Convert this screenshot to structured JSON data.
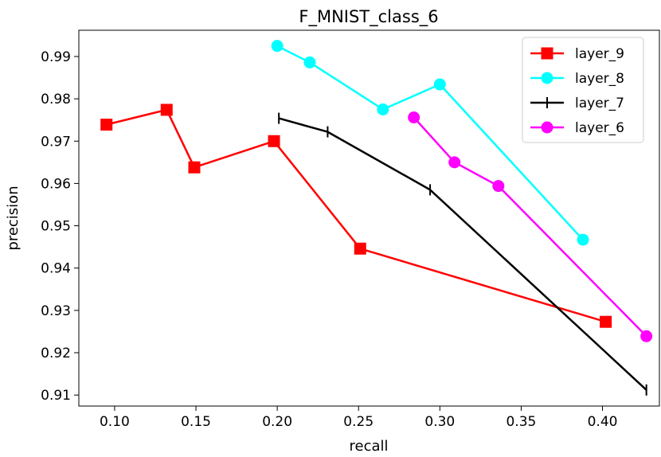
{
  "chart_data": {
    "type": "line",
    "title": "F_MNIST_class_6",
    "xlabel": "recall",
    "ylabel": "precision",
    "xlim": [
      0.078,
      0.435
    ],
    "ylim": [
      0.9074,
      0.9962
    ],
    "xticks": [
      0.1,
      0.15,
      0.2,
      0.25,
      0.3,
      0.35,
      0.4
    ],
    "xtick_labels": [
      "0.10",
      "0.15",
      "0.20",
      "0.25",
      "0.30",
      "0.35",
      "0.40"
    ],
    "yticks": [
      0.91,
      0.92,
      0.93,
      0.94,
      0.95,
      0.96,
      0.97,
      0.98,
      0.99
    ],
    "ytick_labels": [
      "0.91",
      "0.92",
      "0.93",
      "0.94",
      "0.95",
      "0.96",
      "0.97",
      "0.98",
      "0.99"
    ],
    "grid": false,
    "legend_position": "top-right",
    "series": [
      {
        "name": "layer_9",
        "color": "#ff0000",
        "marker": "square",
        "points": [
          [
            0.095,
            0.9739
          ],
          [
            0.132,
            0.9774
          ],
          [
            0.149,
            0.9638
          ],
          [
            0.198,
            0.97
          ],
          [
            0.251,
            0.9446
          ],
          [
            0.402,
            0.9273
          ]
        ]
      },
      {
        "name": "layer_8",
        "color": "#00ffff",
        "marker": "circle",
        "points": [
          [
            0.2,
            0.9925
          ],
          [
            0.22,
            0.9886
          ],
          [
            0.265,
            0.9775
          ],
          [
            0.3,
            0.9834
          ],
          [
            0.388,
            0.9467
          ]
        ]
      },
      {
        "name": "layer_7",
        "color": "#000000",
        "marker": "vline",
        "points": [
          [
            0.201,
            0.9754
          ],
          [
            0.231,
            0.9722
          ],
          [
            0.294,
            0.9585
          ],
          [
            0.427,
            0.9112
          ]
        ]
      },
      {
        "name": "layer_6",
        "color": "#ff00ff",
        "marker": "circle",
        "points": [
          [
            0.284,
            0.9756
          ],
          [
            0.309,
            0.965
          ],
          [
            0.336,
            0.9594
          ],
          [
            0.427,
            0.9239
          ]
        ]
      }
    ]
  }
}
